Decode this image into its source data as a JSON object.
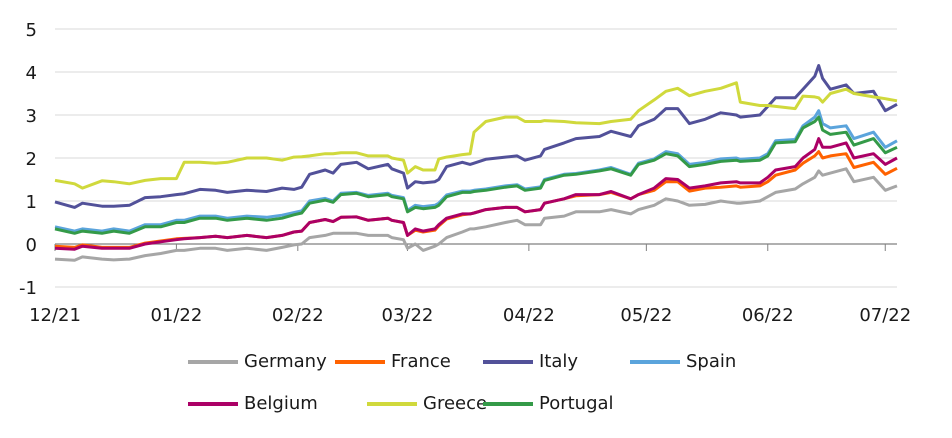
{
  "chart_data": {
    "type": "line",
    "title": "",
    "xlabel": "",
    "ylabel": "",
    "ylim": [
      -1,
      5
    ],
    "yticks": [
      "-1",
      "0",
      "1",
      "2",
      "3",
      "4",
      "5"
    ],
    "xticks": [
      {
        "date": "2021-12-01",
        "label": "12/21"
      },
      {
        "date": "2022-01-01",
        "label": "01/22"
      },
      {
        "date": "2022-02-01",
        "label": "02/22"
      },
      {
        "date": "2022-03-01",
        "label": "03/22"
      },
      {
        "date": "2022-04-01",
        "label": "04/22"
      },
      {
        "date": "2022-05-01",
        "label": "05/22"
      },
      {
        "date": "2022-06-01",
        "label": "06/22"
      },
      {
        "date": "2022-07-01",
        "label": "07/22"
      }
    ],
    "xlim": [
      "2021-12-01",
      "2022-07-04"
    ],
    "grid": true,
    "legend_position": "bottom",
    "x": [
      "2021-12-01",
      "2021-12-06",
      "2021-12-08",
      "2021-12-13",
      "2021-12-16",
      "2021-12-20",
      "2021-12-24",
      "2021-12-28",
      "2022-01-01",
      "2022-01-03",
      "2022-01-07",
      "2022-01-11",
      "2022-01-14",
      "2022-01-19",
      "2022-01-24",
      "2022-01-28",
      "2022-01-31",
      "2022-02-02",
      "2022-02-04",
      "2022-02-08",
      "2022-02-10",
      "2022-02-12",
      "2022-02-16",
      "2022-02-19",
      "2022-02-24",
      "2022-02-25",
      "2022-02-28",
      "2022-03-01",
      "2022-03-03",
      "2022-03-05",
      "2022-03-08",
      "2022-03-09",
      "2022-03-11",
      "2022-03-15",
      "2022-03-17",
      "2022-03-18",
      "2022-03-21",
      "2022-03-26",
      "2022-03-29",
      "2022-03-31",
      "2022-04-04",
      "2022-04-05",
      "2022-04-10",
      "2022-04-13",
      "2022-04-19",
      "2022-04-22",
      "2022-04-27",
      "2022-04-29",
      "2022-05-03",
      "2022-05-06",
      "2022-05-09",
      "2022-05-12",
      "2022-05-16",
      "2022-05-20",
      "2022-05-24",
      "2022-05-25",
      "2022-05-30",
      "2022-06-01",
      "2022-06-03",
      "2022-06-08",
      "2022-06-10",
      "2022-06-13",
      "2022-06-14",
      "2022-06-15",
      "2022-06-17",
      "2022-06-21",
      "2022-06-23",
      "2022-06-28",
      "2022-07-01",
      "2022-07-04"
    ],
    "series": [
      {
        "name": "Germany",
        "color": "#a6a6a6",
        "values": [
          -0.35,
          -0.38,
          -0.3,
          -0.35,
          -0.37,
          -0.35,
          -0.27,
          -0.22,
          -0.15,
          -0.15,
          -0.1,
          -0.1,
          -0.15,
          -0.1,
          -0.15,
          -0.08,
          -0.02,
          0.0,
          0.15,
          0.2,
          0.25,
          0.25,
          0.25,
          0.2,
          0.2,
          0.15,
          0.1,
          -0.1,
          0.0,
          -0.15,
          -0.05,
          0.0,
          0.15,
          0.28,
          0.35,
          0.35,
          0.4,
          0.5,
          0.55,
          0.45,
          0.45,
          0.6,
          0.65,
          0.75,
          0.75,
          0.8,
          0.7,
          0.8,
          0.9,
          1.05,
          1.0,
          0.9,
          0.92,
          1.0,
          0.95,
          0.95,
          1.0,
          1.1,
          1.2,
          1.28,
          1.4,
          1.55,
          1.7,
          1.6,
          1.65,
          1.75,
          1.45,
          1.55,
          1.25,
          1.35
        ]
      },
      {
        "name": "France",
        "color": "#ff6200",
        "values": [
          -0.05,
          -0.08,
          -0.02,
          -0.08,
          -0.08,
          -0.08,
          0.02,
          0.07,
          0.12,
          0.13,
          0.15,
          0.18,
          0.15,
          0.2,
          0.15,
          0.2,
          0.28,
          0.3,
          0.5,
          0.57,
          0.52,
          0.62,
          0.63,
          0.55,
          0.6,
          0.55,
          0.5,
          0.2,
          0.32,
          0.28,
          0.32,
          0.42,
          0.58,
          0.68,
          0.7,
          0.72,
          0.8,
          0.85,
          0.85,
          0.75,
          0.8,
          0.95,
          1.05,
          1.12,
          1.15,
          1.2,
          1.05,
          1.15,
          1.25,
          1.45,
          1.45,
          1.23,
          1.3,
          1.32,
          1.35,
          1.32,
          1.35,
          1.45,
          1.6,
          1.72,
          1.88,
          2.05,
          2.15,
          2.0,
          2.05,
          2.1,
          1.78,
          1.9,
          1.62,
          1.76
        ]
      },
      {
        "name": "Italy",
        "color": "#525199",
        "values": [
          0.98,
          0.85,
          0.95,
          0.88,
          0.88,
          0.9,
          1.08,
          1.1,
          1.15,
          1.17,
          1.27,
          1.25,
          1.2,
          1.25,
          1.22,
          1.3,
          1.27,
          1.32,
          1.62,
          1.72,
          1.65,
          1.85,
          1.9,
          1.75,
          1.85,
          1.75,
          1.65,
          1.3,
          1.45,
          1.42,
          1.45,
          1.5,
          1.8,
          1.9,
          1.85,
          1.88,
          1.97,
          2.02,
          2.05,
          1.95,
          2.05,
          2.2,
          2.35,
          2.45,
          2.5,
          2.62,
          2.5,
          2.75,
          2.9,
          3.15,
          3.15,
          2.8,
          2.9,
          3.05,
          3.0,
          2.95,
          3.0,
          3.2,
          3.4,
          3.4,
          3.6,
          3.9,
          4.15,
          3.85,
          3.6,
          3.7,
          3.5,
          3.55,
          3.1,
          3.25
        ]
      },
      {
        "name": "Spain",
        "color": "#5ba4dc",
        "values": [
          0.4,
          0.3,
          0.35,
          0.3,
          0.35,
          0.3,
          0.45,
          0.45,
          0.55,
          0.55,
          0.65,
          0.65,
          0.6,
          0.65,
          0.62,
          0.67,
          0.73,
          0.77,
          1.0,
          1.06,
          1.0,
          1.18,
          1.2,
          1.13,
          1.18,
          1.13,
          1.08,
          0.78,
          0.9,
          0.87,
          0.9,
          0.95,
          1.14,
          1.23,
          1.23,
          1.25,
          1.28,
          1.35,
          1.38,
          1.28,
          1.33,
          1.5,
          1.62,
          1.64,
          1.72,
          1.78,
          1.62,
          1.88,
          1.98,
          2.15,
          2.1,
          1.85,
          1.9,
          1.98,
          2.0,
          1.97,
          2.0,
          2.1,
          2.4,
          2.43,
          2.75,
          2.95,
          3.1,
          2.8,
          2.7,
          2.75,
          2.45,
          2.6,
          2.25,
          2.4
        ]
      },
      {
        "name": "Belgium",
        "color": "#ab0066",
        "values": [
          -0.1,
          -0.12,
          -0.05,
          -0.1,
          -0.1,
          -0.1,
          0.0,
          0.05,
          0.1,
          0.12,
          0.15,
          0.18,
          0.15,
          0.2,
          0.15,
          0.2,
          0.28,
          0.3,
          0.5,
          0.57,
          0.52,
          0.62,
          0.63,
          0.55,
          0.6,
          0.55,
          0.5,
          0.2,
          0.35,
          0.3,
          0.35,
          0.45,
          0.6,
          0.7,
          0.7,
          0.72,
          0.8,
          0.85,
          0.85,
          0.75,
          0.8,
          0.95,
          1.05,
          1.15,
          1.15,
          1.22,
          1.05,
          1.15,
          1.3,
          1.52,
          1.5,
          1.3,
          1.35,
          1.42,
          1.45,
          1.42,
          1.42,
          1.55,
          1.72,
          1.8,
          2.0,
          2.2,
          2.45,
          2.25,
          2.25,
          2.35,
          2.0,
          2.1,
          1.85,
          2.0
        ]
      },
      {
        "name": "Greece",
        "color": "#d0d93c",
        "values": [
          1.48,
          1.4,
          1.3,
          1.47,
          1.45,
          1.4,
          1.48,
          1.52,
          1.52,
          1.9,
          1.9,
          1.88,
          1.9,
          2.0,
          2.0,
          1.95,
          2.02,
          2.03,
          2.05,
          2.1,
          2.1,
          2.12,
          2.12,
          2.05,
          2.05,
          2.0,
          1.95,
          1.65,
          1.8,
          1.72,
          1.72,
          1.98,
          2.02,
          2.08,
          2.1,
          2.6,
          2.85,
          2.95,
          2.95,
          2.85,
          2.85,
          2.87,
          2.85,
          2.82,
          2.8,
          2.85,
          2.9,
          3.1,
          3.35,
          3.55,
          3.62,
          3.45,
          3.55,
          3.62,
          3.75,
          3.3,
          3.22,
          3.22,
          3.2,
          3.15,
          3.44,
          3.42,
          3.4,
          3.3,
          3.5,
          3.6,
          3.5,
          3.42,
          3.38,
          3.33
        ]
      },
      {
        "name": "Portugal",
        "color": "#349a48",
        "values": [
          0.35,
          0.25,
          0.3,
          0.25,
          0.3,
          0.25,
          0.4,
          0.4,
          0.5,
          0.5,
          0.6,
          0.6,
          0.55,
          0.6,
          0.55,
          0.6,
          0.68,
          0.72,
          0.95,
          1.02,
          0.97,
          1.15,
          1.18,
          1.1,
          1.15,
          1.1,
          1.05,
          0.75,
          0.85,
          0.82,
          0.85,
          0.9,
          1.1,
          1.2,
          1.2,
          1.22,
          1.25,
          1.32,
          1.35,
          1.25,
          1.3,
          1.48,
          1.6,
          1.62,
          1.7,
          1.75,
          1.6,
          1.85,
          1.95,
          2.1,
          2.05,
          1.8,
          1.85,
          1.92,
          1.95,
          1.92,
          1.95,
          2.05,
          2.35,
          2.38,
          2.7,
          2.85,
          2.95,
          2.65,
          2.55,
          2.6,
          2.3,
          2.45,
          2.12,
          2.25
        ]
      }
    ]
  }
}
